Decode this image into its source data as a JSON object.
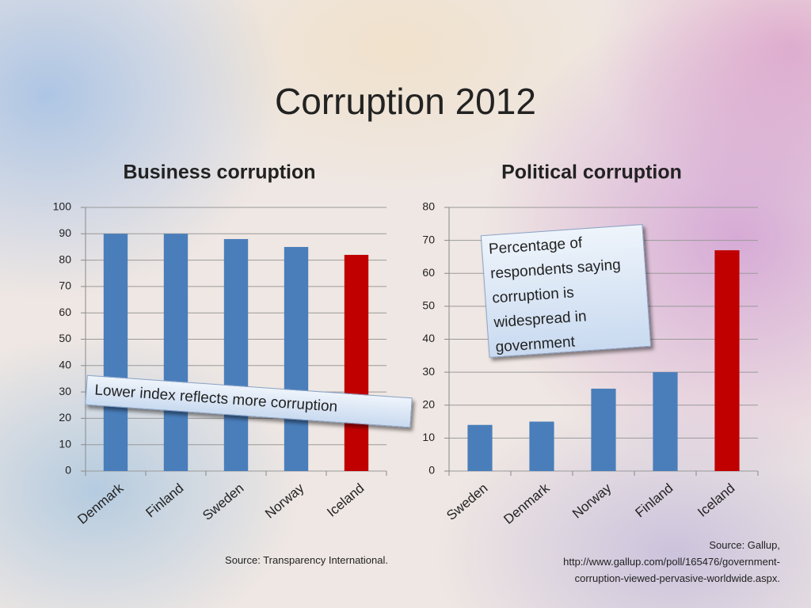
{
  "title": "Corruption 2012",
  "chart_data": [
    {
      "type": "bar",
      "title": "Business corruption",
      "categories": [
        "Denmark",
        "Finland",
        "Sweden",
        "Norway",
        "Iceland"
      ],
      "values": [
        90,
        90,
        88,
        85,
        82
      ],
      "colors": [
        "#4a7ebb",
        "#4a7ebb",
        "#4a7ebb",
        "#4a7ebb",
        "#c00000"
      ],
      "ylim": [
        0,
        100
      ],
      "yticks": [
        0,
        10,
        20,
        30,
        40,
        50,
        60,
        70,
        80,
        90,
        100
      ],
      "grid": true,
      "annotation": "Lower index reflects more corruption",
      "source": [
        "Source: Transparency International."
      ]
    },
    {
      "type": "bar",
      "title": "Political corruption",
      "categories": [
        "Sweden",
        "Denmark",
        "Norway",
        "Finland",
        "Iceland"
      ],
      "values": [
        14,
        15,
        25,
        30,
        67
      ],
      "colors": [
        "#4a7ebb",
        "#4a7ebb",
        "#4a7ebb",
        "#4a7ebb",
        "#c00000"
      ],
      "ylim": [
        0,
        80
      ],
      "yticks": [
        0,
        10,
        20,
        30,
        40,
        50,
        60,
        70,
        80
      ],
      "grid": true,
      "annotation": "Percentage of respondents saying corruption is widespread in government",
      "source": [
        "Source: Gallup,",
        "http://www.gallup.com/poll/165476/government-",
        "corruption-viewed-pervasive-worldwide.aspx."
      ]
    }
  ]
}
